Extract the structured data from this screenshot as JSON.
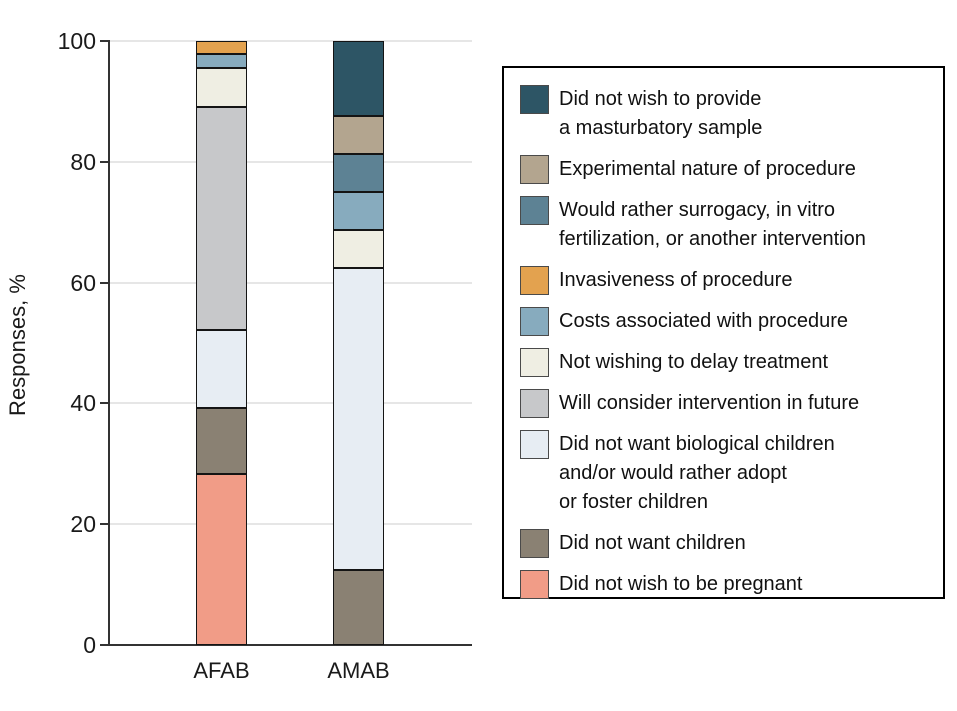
{
  "chart_data": {
    "type": "stacked-bar",
    "title": "",
    "ylabel": "Responses, %",
    "xlabel": "",
    "ylim": [
      0,
      100
    ],
    "grid": true,
    "legend_position": "right-outside",
    "y_ticks": [
      0,
      20,
      40,
      60,
      80,
      100
    ],
    "categories": [
      "AFAB",
      "AMAB"
    ],
    "series": [
      {
        "name": "Did not wish to provide a masturbatory sample",
        "label_lines": [
          "Did not wish to provide",
          "a masturbatory sample"
        ],
        "color": "#2D5565",
        "values": [
          0,
          12.5
        ]
      },
      {
        "name": "Experimental nature of procedure",
        "label_lines": [
          "Experimental nature of procedure"
        ],
        "color": "#B3A58F",
        "values": [
          0,
          6.3
        ]
      },
      {
        "name": "Would rather surrogacy, in vitro fertilization, or another intervention",
        "label_lines": [
          "Would rather surrogacy, in vitro",
          "fertilization, or another intervention"
        ],
        "color": "#5D8294",
        "values": [
          0,
          6.3
        ]
      },
      {
        "name": "Invasiveness of procedure",
        "label_lines": [
          "Invasiveness of procedure"
        ],
        "color": "#E3A24F",
        "values": [
          2.2,
          0
        ]
      },
      {
        "name": "Costs associated with procedure",
        "label_lines": [
          "Costs associated with procedure"
        ],
        "color": "#87ABBE",
        "values": [
          2.2,
          6.3
        ]
      },
      {
        "name": "Not wishing to delay treatment",
        "label_lines": [
          "Not wishing to delay treatment"
        ],
        "color": "#EFEEE3",
        "values": [
          6.5,
          6.3
        ]
      },
      {
        "name": "Will consider intervention in future",
        "label_lines": [
          "Will consider intervention in future"
        ],
        "color": "#C7C8CA",
        "values": [
          37.0,
          0
        ]
      },
      {
        "name": "Did not want biological children and/or would rather adopt or foster children",
        "label_lines": [
          "Did not want biological children",
          "and/or would rather adopt",
          "or foster children"
        ],
        "color": "#E7EDF3",
        "values": [
          13.0,
          50.0
        ]
      },
      {
        "name": "Did not want children",
        "label_lines": [
          "Did not want children"
        ],
        "color": "#8A8173",
        "values": [
          10.9,
          12.5
        ]
      },
      {
        "name": "Did not wish to be pregnant",
        "label_lines": [
          "Did not wish to be pregnant"
        ],
        "color": "#F19C87",
        "values": [
          28.3,
          0
        ]
      }
    ]
  },
  "colors": {
    "axis": "#333333",
    "gridline": "#e6e6e6",
    "bar_border": "#141414",
    "legend_border": "#000000",
    "text": "#1a1a1a"
  }
}
